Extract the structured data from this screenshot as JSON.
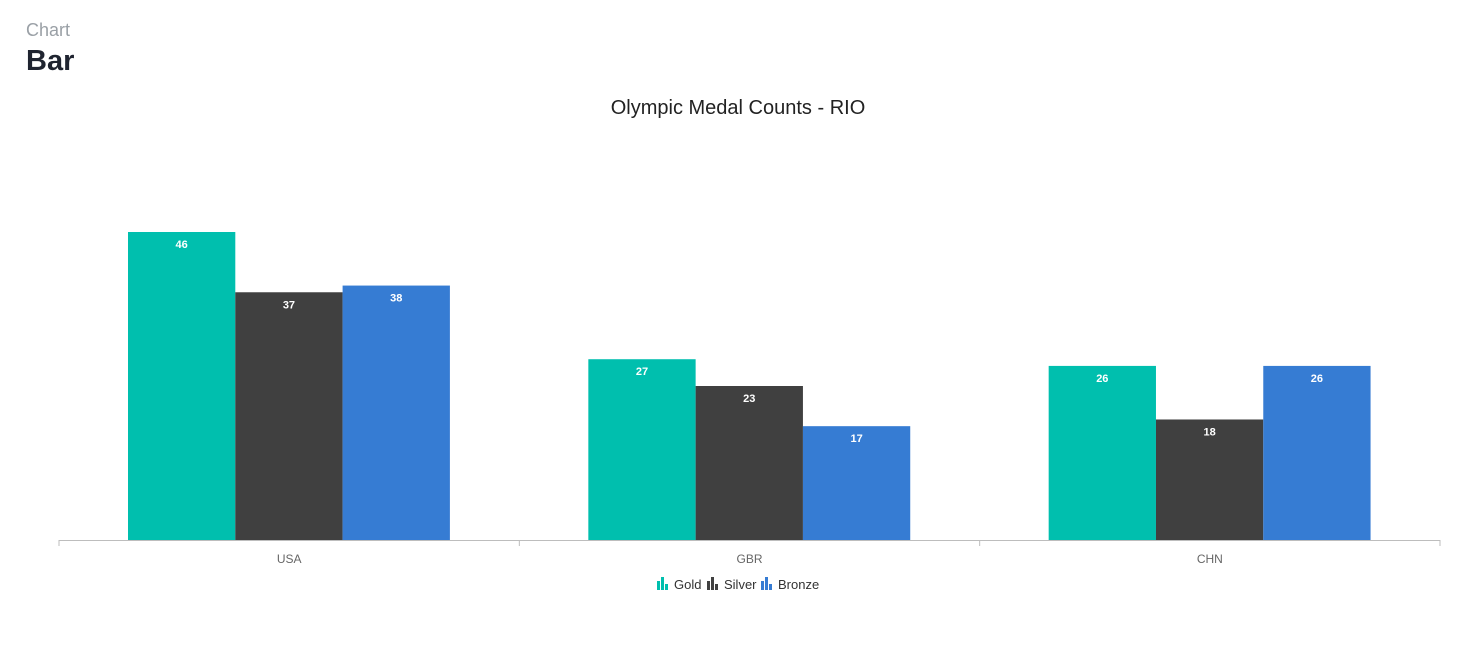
{
  "header": {
    "crumb": "Chart",
    "title": "Bar"
  },
  "chart_data": {
    "type": "bar",
    "title": "Olympic Medal Counts - RIO",
    "categories": [
      "USA",
      "GBR",
      "CHN"
    ],
    "series": [
      {
        "name": "Gold",
        "color": "#00bfae",
        "values": [
          46,
          27,
          26
        ]
      },
      {
        "name": "Silver",
        "color": "#404040",
        "values": [
          37,
          23,
          18
        ]
      },
      {
        "name": "Bronze",
        "color": "#367cd3",
        "values": [
          38,
          17,
          26
        ]
      }
    ],
    "ylim": [
      0,
      60
    ],
    "grid": false,
    "legend_position": "bottom"
  }
}
